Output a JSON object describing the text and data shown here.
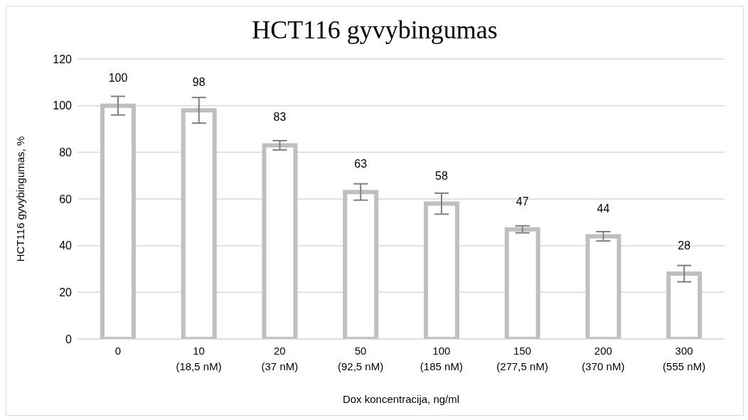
{
  "chart_data": {
    "type": "bar",
    "title": "HCT116 gyvybingumas",
    "xlabel": "Dox koncentracija, ng/ml",
    "ylabel": "HCT116 gyvybingumas, %",
    "categories": [
      "0",
      "10\n(18,5 nM)",
      "20\n(37 nM)",
      "50\n(92,5 nM)",
      "100\n(185 nM)",
      "150\n(277,5 nM)",
      "200\n(370 nM)",
      "300\n(555 nM)"
    ],
    "values": [
      100,
      98,
      83,
      63,
      58,
      47,
      44,
      28
    ],
    "errors": [
      4,
      5.5,
      2,
      3.5,
      4.5,
      1.5,
      2,
      3.5
    ],
    "color": "#bfbfbf",
    "ylim": [
      0,
      120
    ],
    "yticks": [
      0,
      20,
      40,
      60,
      80,
      100,
      120
    ],
    "grid": "y",
    "data_labels": true
  }
}
